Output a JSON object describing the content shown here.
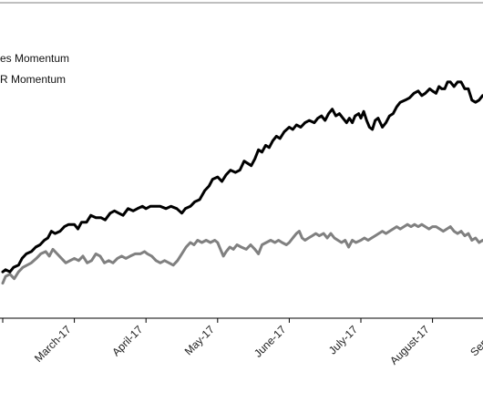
{
  "colors": {
    "background": "#ffffff",
    "frame": "#7f7f7f",
    "axis": "#000000",
    "text": "#222222"
  },
  "chart_data": {
    "type": "line",
    "title": "",
    "xlabel": "",
    "ylabel": "",
    "x_tick_labels": [
      "",
      "March-17",
      "April-17",
      "May-17",
      "June-17",
      "July-17",
      "August-17",
      "Septem"
    ],
    "legend": {
      "placement": "top-left",
      "entries": [
        "es Momentum",
        "R Momentum"
      ]
    },
    "grid": false,
    "x_unit": "month (0 = start of plot window, 7 = September-17)",
    "xlim": [
      0,
      7.3
    ],
    "ylim": [
      0,
      100
    ],
    "series": [
      {
        "legend_text": "es Momentum",
        "color": "#000000",
        "points": [
          [
            0.0,
            12
          ],
          [
            0.04,
            13
          ],
          [
            0.1,
            12
          ],
          [
            0.15,
            14
          ],
          [
            0.22,
            15
          ],
          [
            0.27,
            18
          ],
          [
            0.33,
            20
          ],
          [
            0.4,
            21
          ],
          [
            0.46,
            23
          ],
          [
            0.52,
            24
          ],
          [
            0.58,
            26
          ],
          [
            0.63,
            27
          ],
          [
            0.68,
            30
          ],
          [
            0.73,
            29
          ],
          [
            0.8,
            30
          ],
          [
            0.86,
            32
          ],
          [
            0.92,
            33
          ],
          [
            1.0,
            33
          ],
          [
            1.05,
            31
          ],
          [
            1.1,
            34
          ],
          [
            1.17,
            34
          ],
          [
            1.23,
            37
          ],
          [
            1.3,
            36
          ],
          [
            1.37,
            36
          ],
          [
            1.43,
            35
          ],
          [
            1.5,
            38
          ],
          [
            1.56,
            39
          ],
          [
            1.62,
            38
          ],
          [
            1.68,
            37
          ],
          [
            1.75,
            40
          ],
          [
            1.82,
            39
          ],
          [
            1.88,
            40
          ],
          [
            1.95,
            41
          ],
          [
            2.0,
            40
          ],
          [
            2.06,
            41
          ],
          [
            2.12,
            41
          ],
          [
            2.2,
            41
          ],
          [
            2.28,
            40
          ],
          [
            2.35,
            41
          ],
          [
            2.43,
            40
          ],
          [
            2.5,
            38
          ],
          [
            2.55,
            40
          ],
          [
            2.62,
            41
          ],
          [
            2.68,
            43
          ],
          [
            2.75,
            44
          ],
          [
            2.82,
            48
          ],
          [
            2.88,
            50
          ],
          [
            2.93,
            53
          ],
          [
            3.0,
            54
          ],
          [
            3.06,
            52
          ],
          [
            3.12,
            55
          ],
          [
            3.18,
            57
          ],
          [
            3.25,
            56
          ],
          [
            3.31,
            57
          ],
          [
            3.37,
            61
          ],
          [
            3.42,
            60
          ],
          [
            3.47,
            59
          ],
          [
            3.52,
            62
          ],
          [
            3.57,
            66
          ],
          [
            3.62,
            65
          ],
          [
            3.67,
            68
          ],
          [
            3.72,
            67
          ],
          [
            3.77,
            70
          ],
          [
            3.82,
            72
          ],
          [
            3.87,
            71
          ],
          [
            3.93,
            74
          ],
          [
            4.0,
            76
          ],
          [
            4.05,
            75
          ],
          [
            4.1,
            77
          ],
          [
            4.16,
            76
          ],
          [
            4.22,
            78
          ],
          [
            4.28,
            79
          ],
          [
            4.35,
            78
          ],
          [
            4.4,
            80
          ],
          [
            4.45,
            81
          ],
          [
            4.5,
            79
          ],
          [
            4.55,
            82
          ],
          [
            4.6,
            84
          ],
          [
            4.65,
            81
          ],
          [
            4.7,
            82
          ],
          [
            4.75,
            80
          ],
          [
            4.8,
            78
          ],
          [
            4.84,
            80
          ],
          [
            4.88,
            78
          ],
          [
            4.92,
            81
          ],
          [
            4.97,
            82
          ],
          [
            5.0,
            80
          ],
          [
            5.04,
            83
          ],
          [
            5.08,
            79
          ],
          [
            5.12,
            76
          ],
          [
            5.16,
            75
          ],
          [
            5.2,
            79
          ],
          [
            5.24,
            80
          ],
          [
            5.3,
            76
          ],
          [
            5.35,
            78
          ],
          [
            5.4,
            81
          ],
          [
            5.45,
            82
          ],
          [
            5.5,
            85
          ],
          [
            5.55,
            87
          ],
          [
            5.62,
            88
          ],
          [
            5.68,
            89
          ],
          [
            5.74,
            91
          ],
          [
            5.8,
            92
          ],
          [
            5.85,
            90
          ],
          [
            5.9,
            91
          ],
          [
            5.96,
            93
          ],
          [
            6.0,
            92
          ],
          [
            6.05,
            91
          ],
          [
            6.09,
            94
          ],
          [
            6.13,
            93
          ],
          [
            6.17,
            93
          ],
          [
            6.21,
            96
          ],
          [
            6.25,
            96
          ],
          [
            6.3,
            94
          ],
          [
            6.35,
            96
          ],
          [
            6.4,
            96
          ],
          [
            6.45,
            93
          ],
          [
            6.5,
            93
          ],
          [
            6.55,
            88
          ],
          [
            6.6,
            87
          ],
          [
            6.65,
            88
          ],
          [
            6.7,
            90
          ],
          [
            6.74,
            89
          ],
          [
            6.78,
            93
          ],
          [
            6.82,
            94
          ],
          [
            6.86,
            90
          ],
          [
            6.9,
            88
          ],
          [
            6.94,
            87
          ],
          [
            6.98,
            88
          ],
          [
            7.0,
            85
          ],
          [
            7.04,
            84
          ],
          [
            7.07,
            86
          ],
          [
            7.1,
            87
          ],
          [
            7.13,
            90
          ],
          [
            7.2,
            90
          ],
          [
            7.3,
            90
          ]
        ]
      },
      {
        "legend_text": "R Momentum",
        "color": "#808080",
        "points": [
          [
            0.0,
            7
          ],
          [
            0.04,
            10
          ],
          [
            0.1,
            11
          ],
          [
            0.16,
            9
          ],
          [
            0.22,
            12
          ],
          [
            0.28,
            14
          ],
          [
            0.34,
            15
          ],
          [
            0.4,
            16
          ],
          [
            0.47,
            18
          ],
          [
            0.53,
            20
          ],
          [
            0.6,
            21
          ],
          [
            0.65,
            19
          ],
          [
            0.7,
            22
          ],
          [
            0.76,
            20
          ],
          [
            0.82,
            18
          ],
          [
            0.88,
            16
          ],
          [
            0.94,
            17
          ],
          [
            1.0,
            18
          ],
          [
            1.06,
            17
          ],
          [
            1.12,
            19
          ],
          [
            1.18,
            16
          ],
          [
            1.24,
            17
          ],
          [
            1.3,
            20
          ],
          [
            1.36,
            19
          ],
          [
            1.42,
            16
          ],
          [
            1.48,
            17
          ],
          [
            1.54,
            16
          ],
          [
            1.6,
            18
          ],
          [
            1.66,
            19
          ],
          [
            1.72,
            18
          ],
          [
            1.78,
            19
          ],
          [
            1.85,
            20
          ],
          [
            1.92,
            20
          ],
          [
            1.98,
            21
          ],
          [
            2.02,
            20
          ],
          [
            2.08,
            19
          ],
          [
            2.14,
            17
          ],
          [
            2.2,
            16
          ],
          [
            2.26,
            17
          ],
          [
            2.32,
            16
          ],
          [
            2.38,
            15
          ],
          [
            2.44,
            17
          ],
          [
            2.5,
            20
          ],
          [
            2.56,
            23
          ],
          [
            2.62,
            25
          ],
          [
            2.67,
            24
          ],
          [
            2.72,
            26
          ],
          [
            2.78,
            25
          ],
          [
            2.84,
            26
          ],
          [
            2.9,
            25
          ],
          [
            2.96,
            26
          ],
          [
            3.0,
            25
          ],
          [
            3.04,
            22
          ],
          [
            3.08,
            19
          ],
          [
            3.12,
            21
          ],
          [
            3.17,
            23
          ],
          [
            3.22,
            22
          ],
          [
            3.27,
            24
          ],
          [
            3.33,
            23
          ],
          [
            3.4,
            22
          ],
          [
            3.46,
            24
          ],
          [
            3.52,
            22
          ],
          [
            3.57,
            20
          ],
          [
            3.62,
            24
          ],
          [
            3.68,
            25
          ],
          [
            3.74,
            26
          ],
          [
            3.8,
            25
          ],
          [
            3.85,
            26
          ],
          [
            3.9,
            25
          ],
          [
            3.96,
            24
          ],
          [
            4.0,
            25
          ],
          [
            4.05,
            27
          ],
          [
            4.1,
            29
          ],
          [
            4.14,
            30
          ],
          [
            4.18,
            27
          ],
          [
            4.22,
            26
          ],
          [
            4.27,
            27
          ],
          [
            4.32,
            28
          ],
          [
            4.37,
            29
          ],
          [
            4.42,
            28
          ],
          [
            4.48,
            29
          ],
          [
            4.53,
            27
          ],
          [
            4.58,
            29
          ],
          [
            4.63,
            27
          ],
          [
            4.68,
            26
          ],
          [
            4.73,
            25
          ],
          [
            4.78,
            26
          ],
          [
            4.83,
            23
          ],
          [
            4.88,
            26
          ],
          [
            4.93,
            25
          ],
          [
            5.0,
            26
          ],
          [
            5.05,
            27
          ],
          [
            5.1,
            26
          ],
          [
            5.15,
            27
          ],
          [
            5.2,
            28
          ],
          [
            5.25,
            29
          ],
          [
            5.3,
            30
          ],
          [
            5.35,
            29
          ],
          [
            5.4,
            30
          ],
          [
            5.45,
            31
          ],
          [
            5.5,
            32
          ],
          [
            5.55,
            31
          ],
          [
            5.6,
            32
          ],
          [
            5.65,
            33
          ],
          [
            5.7,
            32
          ],
          [
            5.75,
            33
          ],
          [
            5.8,
            32
          ],
          [
            5.85,
            33
          ],
          [
            5.9,
            32
          ],
          [
            5.95,
            31
          ],
          [
            6.0,
            32
          ],
          [
            6.05,
            32
          ],
          [
            6.1,
            31
          ],
          [
            6.15,
            30
          ],
          [
            6.2,
            31
          ],
          [
            6.25,
            32
          ],
          [
            6.3,
            30
          ],
          [
            6.35,
            29
          ],
          [
            6.4,
            30
          ],
          [
            6.45,
            28
          ],
          [
            6.5,
            29
          ],
          [
            6.55,
            26
          ],
          [
            6.6,
            27
          ],
          [
            6.65,
            25
          ],
          [
            6.7,
            26
          ],
          [
            6.75,
            25
          ],
          [
            6.8,
            24
          ],
          [
            6.85,
            23
          ],
          [
            6.9,
            22
          ],
          [
            6.95,
            24
          ],
          [
            7.0,
            23
          ],
          [
            7.04,
            22
          ],
          [
            7.08,
            26
          ],
          [
            7.12,
            27
          ],
          [
            7.2,
            27
          ],
          [
            7.3,
            27
          ]
        ]
      }
    ]
  }
}
